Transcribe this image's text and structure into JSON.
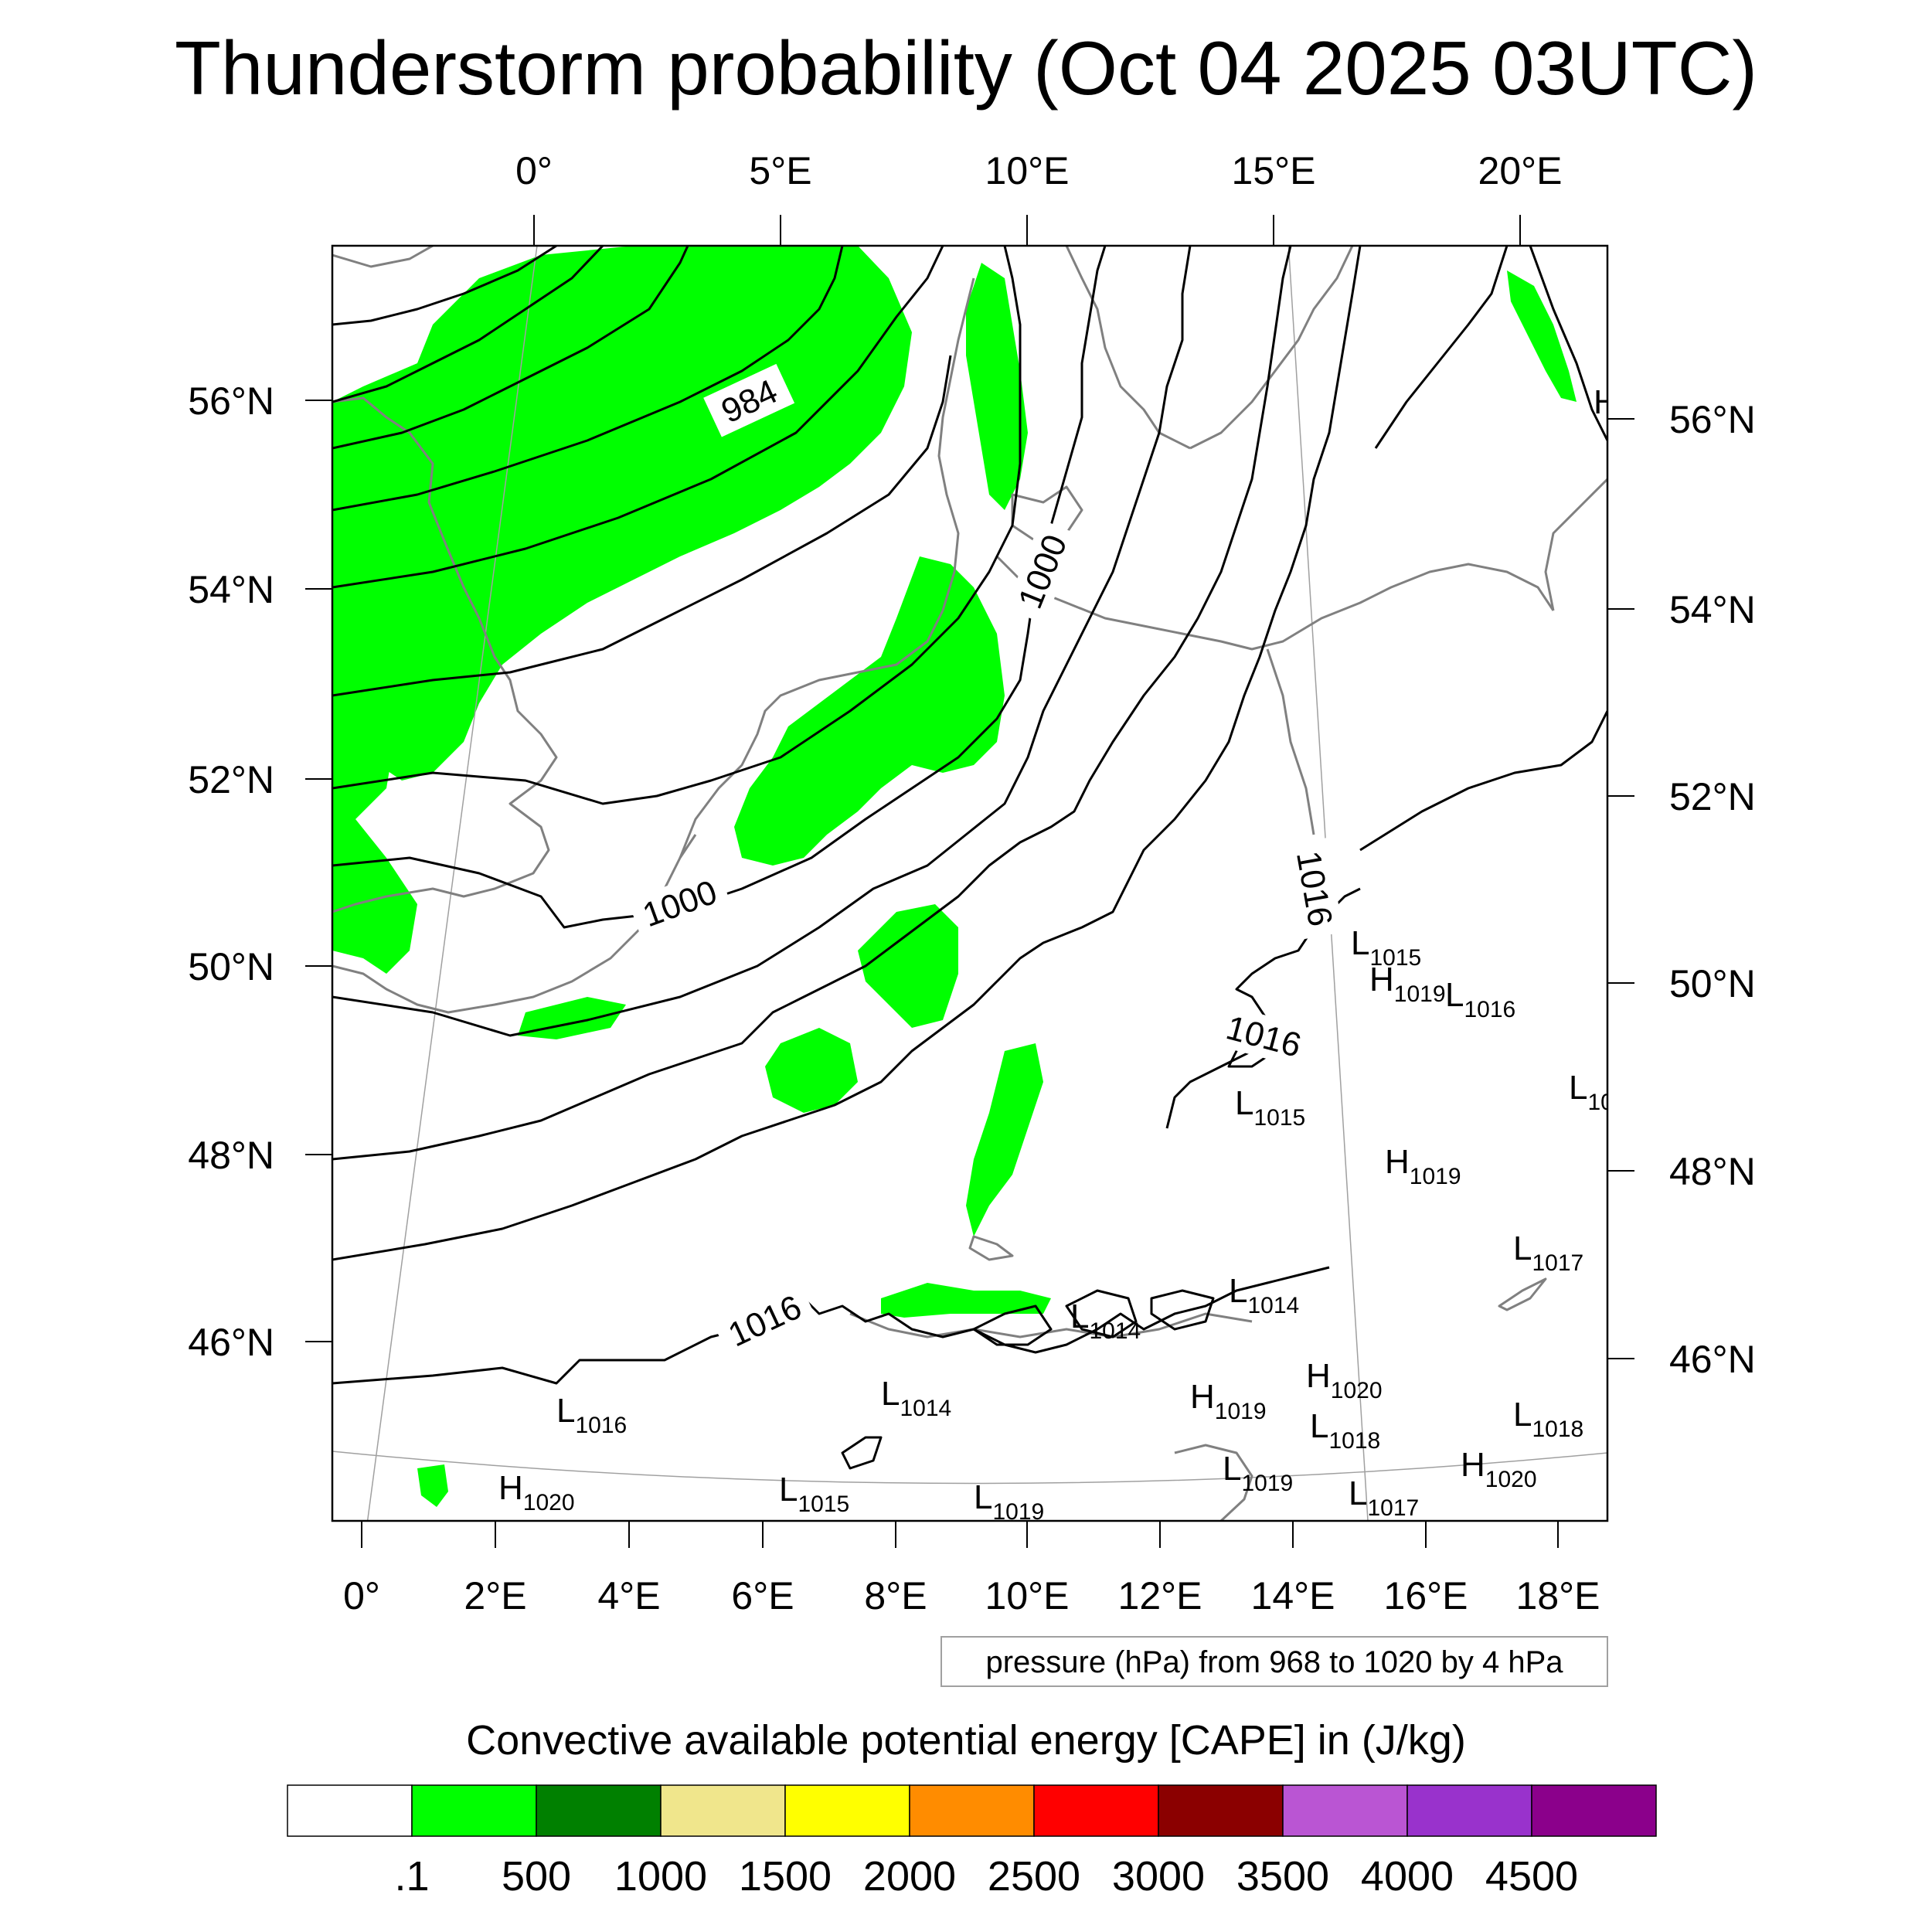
{
  "title": "Thunderstorm probability (Oct 04 2025 03UTC)",
  "top_lon_ticks": [
    "0°",
    "5°E",
    "10°E",
    "15°E",
    "20°E"
  ],
  "left_lat_ticks": [
    "56°N",
    "54°N",
    "52°N",
    "50°N",
    "48°N",
    "46°N"
  ],
  "right_lat_ticks": [
    "56°N",
    "54°N",
    "52°N",
    "50°N",
    "48°N",
    "46°N"
  ],
  "bottom_lon_ticks": [
    "0°",
    "2°E",
    "4°E",
    "6°E",
    "8°E",
    "10°E",
    "12°E",
    "14°E",
    "16°E",
    "18°E"
  ],
  "contour_labels": [
    "984",
    "1000",
    "1000",
    "1016",
    "1016",
    "1016"
  ],
  "pressure_centers": [
    {
      "letter": "L",
      "value": "1015"
    },
    {
      "letter": "H",
      "value": "1019"
    },
    {
      "letter": "L",
      "value": "1016"
    },
    {
      "letter": "L",
      "value": "10"
    },
    {
      "letter": "L",
      "value": "1015"
    },
    {
      "letter": "H",
      "value": "1019"
    },
    {
      "letter": "L",
      "value": "1017"
    },
    {
      "letter": "L",
      "value": "1014"
    },
    {
      "letter": "L",
      "value": "1014"
    },
    {
      "letter": "L",
      "value": "1016"
    },
    {
      "letter": "L",
      "value": "1014"
    },
    {
      "letter": "H",
      "value": "1019"
    },
    {
      "letter": "H",
      "value": "1020"
    },
    {
      "letter": "L",
      "value": "1018"
    },
    {
      "letter": "L",
      "value": "1018"
    },
    {
      "letter": "L",
      "value": "1019"
    },
    {
      "letter": "L",
      "value": "1017"
    },
    {
      "letter": "H",
      "value": "1020"
    },
    {
      "letter": "H",
      "value": "1020"
    },
    {
      "letter": "L",
      "value": "1015"
    },
    {
      "letter": "L",
      "value": "1019"
    },
    {
      "letter": "H",
      "value": ""
    }
  ],
  "info_box": "pressure (hPa) from 968 to 1020 by 4 hPa",
  "colorbar": {
    "title": "Convective available potential energy [CAPE] in (J/kg)",
    "colors": [
      "#ffffff",
      "#00ff00",
      "#008000",
      "#f0e68c",
      "#ffff00",
      "#ff8c00",
      "#ff0000",
      "#8b0000",
      "#ba55d3",
      "#9932cc",
      "#8b008b"
    ],
    "labels": [
      ".1",
      "500",
      "1000",
      "1500",
      "2000",
      "2500",
      "3000",
      "3500",
      "4000",
      "4500"
    ]
  }
}
